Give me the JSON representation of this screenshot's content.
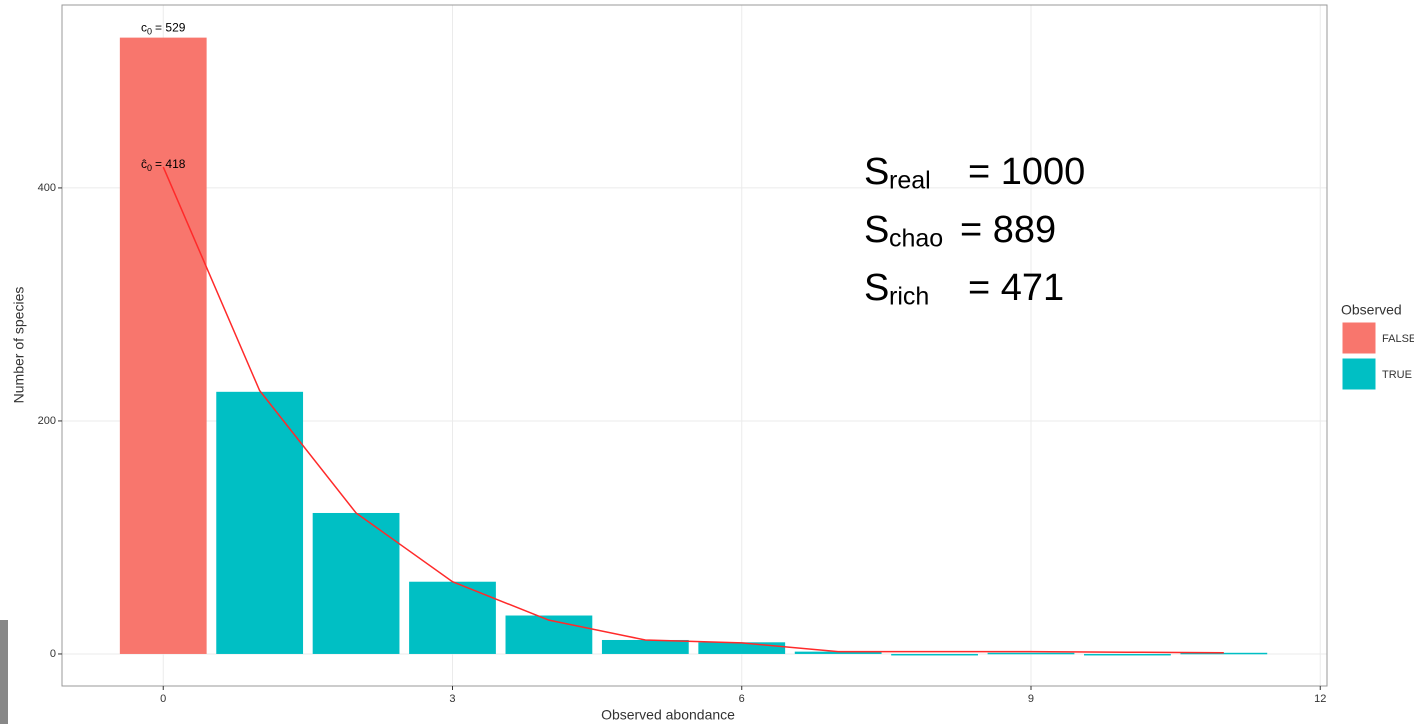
{
  "chart_data": {
    "type": "bar",
    "x_label": "Observed abondance",
    "y_label": "Number of species",
    "x": [
      0,
      1,
      2,
      3,
      4,
      5,
      6,
      7,
      8,
      9,
      10,
      11
    ],
    "series": [
      {
        "name": "FALSE",
        "color": "#f8766d",
        "values": [
          529,
          null,
          null,
          null,
          null,
          null,
          null,
          null,
          null,
          null,
          null,
          null
        ]
      },
      {
        "name": "TRUE",
        "color": "#00bfc4",
        "values": [
          null,
          225,
          121,
          62,
          33,
          12,
          10,
          2,
          0,
          1,
          0,
          1
        ]
      }
    ],
    "estimate": {
      "color": "#ff2a2a",
      "values": [
        418,
        226,
        121,
        62,
        29,
        12,
        9.5,
        2,
        2,
        2,
        1.5,
        1
      ]
    },
    "annotations": [
      {
        "base": "c",
        "sub": "0",
        "rest": "= 529"
      },
      {
        "base": "ĉ",
        "sub": "0",
        "rest": "= 418"
      }
    ],
    "stats": [
      {
        "base": "S",
        "sub": "real",
        "rest": "= 1000"
      },
      {
        "base": "S",
        "sub": "chao",
        "rest": "= 889"
      },
      {
        "base": "S",
        "sub": "rich",
        "rest": "= 471"
      }
    ],
    "legend_title": "Observed",
    "legend": "right",
    "xlim": [
      -1.05,
      12.07
    ],
    "ylim": [
      -27.5,
      557
    ],
    "xticks": [
      0,
      3,
      6,
      9,
      12
    ],
    "yticks": [
      0,
      200,
      400
    ],
    "grid": true
  }
}
